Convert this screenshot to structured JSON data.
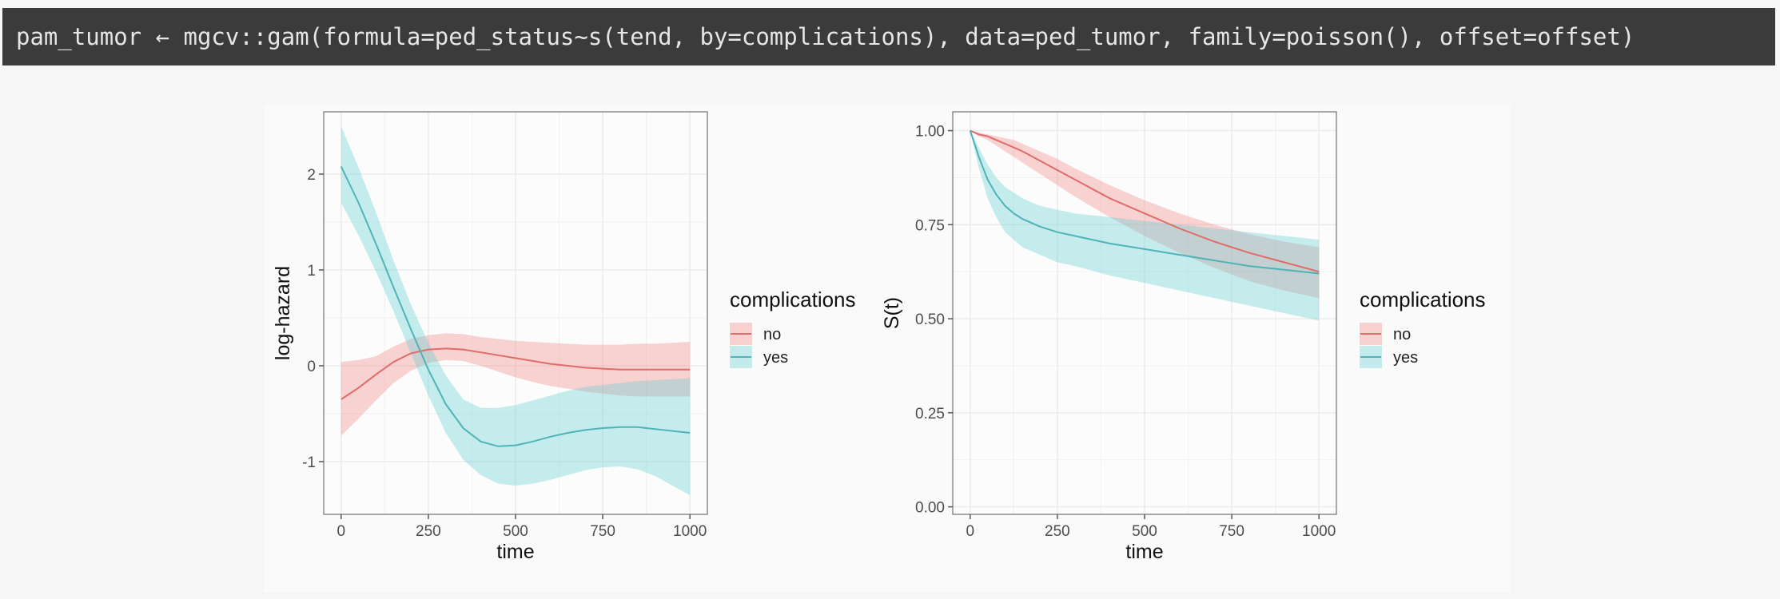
{
  "code": {
    "line": "pam_tumor ← mgcv::gam(formula=ped_status~s(tend, by=complications), data=ped_tumor, family=poisson(), offset=offset)"
  },
  "colors": {
    "no": "#e06c69",
    "no_fill": "#f08080",
    "yes": "#4fb3b8",
    "yes_fill": "#5fcfd1",
    "background": "#fafafa",
    "grid": "#ebebeb",
    "code_bg": "#3b3b3b"
  },
  "chart_data": [
    {
      "type": "line",
      "xlabel": "time",
      "ylabel": "log-hazard",
      "xlim": [
        -50,
        1050
      ],
      "ylim": [
        -1.55,
        2.65
      ],
      "x_ticks": [
        0,
        250,
        500,
        750,
        1000
      ],
      "x_tick_labels": [
        "0",
        "250",
        "500",
        "750",
        "1000"
      ],
      "y_ticks": [
        -1,
        0,
        1,
        2
      ],
      "y_tick_labels": [
        "-1",
        "0",
        "1",
        "2"
      ],
      "grid": true,
      "legend": {
        "title": "complications",
        "position": "right",
        "entries": [
          "no",
          "yes"
        ]
      },
      "x": [
        0,
        50,
        100,
        150,
        200,
        250,
        300,
        350,
        400,
        450,
        500,
        550,
        600,
        650,
        700,
        750,
        800,
        850,
        900,
        950,
        1000
      ],
      "series": [
        {
          "name": "no",
          "values": [
            -0.35,
            -0.23,
            -0.09,
            0.04,
            0.13,
            0.17,
            0.18,
            0.17,
            0.14,
            0.11,
            0.08,
            0.05,
            0.02,
            0.0,
            -0.02,
            -0.03,
            -0.04,
            -0.04,
            -0.04,
            -0.04,
            -0.04
          ],
          "lower": [
            -0.73,
            -0.55,
            -0.36,
            -0.18,
            -0.05,
            0.03,
            0.06,
            0.05,
            0.0,
            -0.06,
            -0.12,
            -0.17,
            -0.21,
            -0.24,
            -0.27,
            -0.29,
            -0.31,
            -0.32,
            -0.32,
            -0.32,
            -0.32
          ],
          "upper": [
            0.04,
            0.06,
            0.1,
            0.2,
            0.28,
            0.32,
            0.34,
            0.33,
            0.3,
            0.28,
            0.26,
            0.25,
            0.24,
            0.23,
            0.22,
            0.22,
            0.22,
            0.23,
            0.23,
            0.24,
            0.25
          ]
        },
        {
          "name": "yes",
          "values": [
            2.08,
            1.7,
            1.27,
            0.82,
            0.38,
            -0.04,
            -0.4,
            -0.65,
            -0.79,
            -0.84,
            -0.83,
            -0.79,
            -0.74,
            -0.7,
            -0.67,
            -0.65,
            -0.64,
            -0.64,
            -0.66,
            -0.68,
            -0.7
          ],
          "lower": [
            1.7,
            1.36,
            0.98,
            0.57,
            0.13,
            -0.31,
            -0.7,
            -0.98,
            -1.14,
            -1.23,
            -1.25,
            -1.23,
            -1.19,
            -1.14,
            -1.09,
            -1.06,
            -1.05,
            -1.08,
            -1.15,
            -1.25,
            -1.35
          ],
          "upper": [
            2.5,
            2.07,
            1.6,
            1.1,
            0.64,
            0.24,
            -0.1,
            -0.35,
            -0.44,
            -0.44,
            -0.41,
            -0.36,
            -0.31,
            -0.26,
            -0.22,
            -0.2,
            -0.18,
            -0.16,
            -0.15,
            -0.14,
            -0.13
          ]
        }
      ]
    },
    {
      "type": "line",
      "xlabel": "time",
      "ylabel": "S(t)",
      "xlim": [
        -50,
        1050
      ],
      "ylim": [
        -0.02,
        1.05
      ],
      "x_ticks": [
        0,
        250,
        500,
        750,
        1000
      ],
      "x_tick_labels": [
        "0",
        "250",
        "500",
        "750",
        "1000"
      ],
      "y_ticks": [
        0,
        0.25,
        0.5,
        0.75,
        1.0
      ],
      "y_tick_labels": [
        "0.00",
        "0.25",
        "0.50",
        "0.75",
        "1.00"
      ],
      "grid": true,
      "legend": {
        "title": "complications",
        "position": "right",
        "entries": [
          "no",
          "yes"
        ]
      },
      "x": [
        0,
        25,
        50,
        75,
        100,
        125,
        150,
        200,
        250,
        300,
        400,
        500,
        600,
        700,
        800,
        900,
        1000
      ],
      "series": [
        {
          "name": "no",
          "values": [
            1.0,
            0.99,
            0.985,
            0.975,
            0.965,
            0.955,
            0.945,
            0.92,
            0.895,
            0.87,
            0.82,
            0.78,
            0.74,
            0.705,
            0.675,
            0.65,
            0.625
          ],
          "lower": [
            1.0,
            0.985,
            0.975,
            0.96,
            0.945,
            0.93,
            0.915,
            0.885,
            0.855,
            0.825,
            0.77,
            0.72,
            0.675,
            0.635,
            0.6,
            0.575,
            0.555
          ],
          "upper": [
            1.0,
            0.995,
            0.99,
            0.985,
            0.98,
            0.975,
            0.965,
            0.945,
            0.925,
            0.9,
            0.855,
            0.815,
            0.78,
            0.75,
            0.725,
            0.705,
            0.69
          ]
        },
        {
          "name": "yes",
          "values": [
            1.0,
            0.93,
            0.87,
            0.83,
            0.8,
            0.78,
            0.765,
            0.745,
            0.73,
            0.72,
            0.7,
            0.685,
            0.67,
            0.655,
            0.64,
            0.63,
            0.62
          ],
          "lower": [
            1.0,
            0.9,
            0.82,
            0.77,
            0.73,
            0.71,
            0.69,
            0.67,
            0.65,
            0.64,
            0.615,
            0.595,
            0.575,
            0.555,
            0.535,
            0.515,
            0.495
          ],
          "upper": [
            1.0,
            0.955,
            0.91,
            0.875,
            0.85,
            0.835,
            0.82,
            0.8,
            0.79,
            0.78,
            0.77,
            0.76,
            0.75,
            0.74,
            0.73,
            0.72,
            0.71
          ]
        }
      ]
    }
  ]
}
